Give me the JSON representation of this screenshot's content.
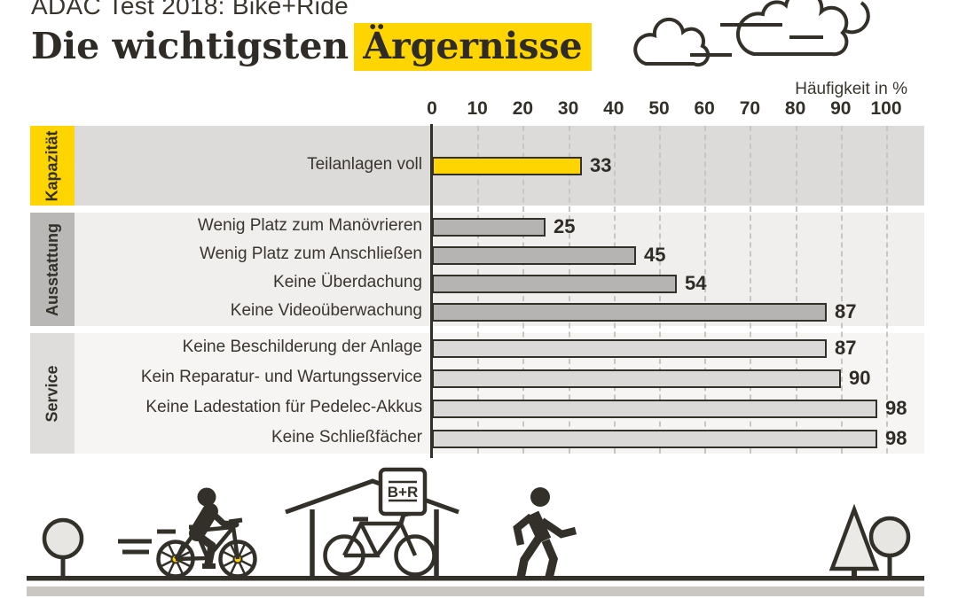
{
  "header": {
    "kicker": "ADAC Test 2018: Bike+Ride",
    "title": "Die wichtigsten",
    "title_highlight": "Ärgernisse"
  },
  "chart_data": {
    "type": "bar",
    "orientation": "horizontal",
    "title": "Die wichtigsten Ärgernisse",
    "xlabel": "Häufigkeit in %",
    "xlim": [
      0,
      100
    ],
    "ticks": [
      0,
      10,
      20,
      30,
      40,
      50,
      60,
      70,
      80,
      90,
      100
    ],
    "grid": "dashed-vertical",
    "groups": [
      {
        "name": "Kapazität",
        "tag_color": "#ffd500",
        "band_color": "#dcdbd9",
        "bar_color": "#ffd500",
        "items": [
          {
            "label": "Teilanlagen voll",
            "value": 33
          }
        ]
      },
      {
        "name": "Ausstattung",
        "tag_color": "#b9b8b6",
        "band_color": "#f0efed",
        "bar_color": "#b5b4b2",
        "items": [
          {
            "label": "Wenig Platz zum Manövrieren",
            "value": 25
          },
          {
            "label": "Wenig Platz zum Anschließen",
            "value": 45
          },
          {
            "label": "Keine Überdachung",
            "value": 54
          },
          {
            "label": "Keine Videoüberwachung",
            "value": 87
          }
        ]
      },
      {
        "name": "Service",
        "tag_color": "#dedddb",
        "band_color": "#f6f5f3",
        "bar_color": "#dad9d7",
        "items": [
          {
            "label": "Keine Beschilderung der Anlage",
            "value": 87
          },
          {
            "label": "Kein Reparatur- und Wartungsservice",
            "value": 90
          },
          {
            "label": "Keine Ladestation für Pedelec-Akkus",
            "value": 98
          },
          {
            "label": "Keine Schließfächer",
            "value": 98
          }
        ]
      }
    ]
  },
  "scene": {
    "sign_label": "B+R",
    "icons": [
      "cloud-icon",
      "tree-round-icon",
      "cyclist-icon",
      "bike-shelter-icon",
      "bike-and-ride-sign",
      "parked-bike-icon",
      "pedestrian-icon",
      "tree-pine-icon"
    ]
  },
  "colors": {
    "ink": "#33302a",
    "accent_yellow": "#ffd500",
    "grid": "#c9c6c1",
    "ground_band": "#cac7c2"
  }
}
